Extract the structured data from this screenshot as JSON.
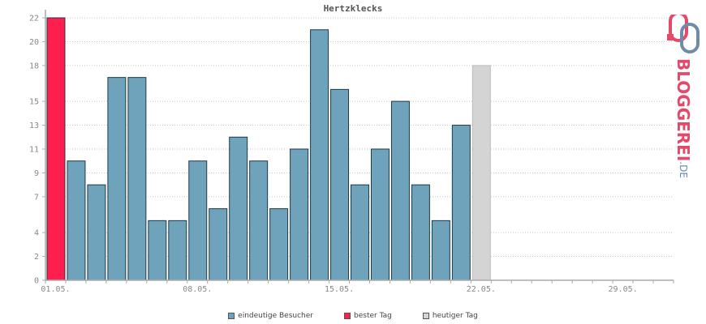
{
  "chart_data": {
    "type": "bar",
    "title": "Hertzklecks",
    "x": [
      "01.05.",
      "02.05.",
      "03.05.",
      "04.05.",
      "05.05.",
      "06.05.",
      "07.05.",
      "08.05.",
      "09.05.",
      "10.05.",
      "11.05.",
      "12.05.",
      "13.05.",
      "14.05.",
      "15.05.",
      "16.05.",
      "17.05.",
      "18.05.",
      "19.05.",
      "20.05.",
      "21.05.",
      "22.05."
    ],
    "values": [
      22,
      10,
      8,
      17,
      17,
      5,
      5,
      10,
      6,
      12,
      10,
      6,
      11,
      21,
      16,
      8,
      11,
      15,
      8,
      5,
      13,
      18
    ],
    "bar_kind": [
      "best",
      "normal",
      "normal",
      "normal",
      "normal",
      "normal",
      "normal",
      "normal",
      "normal",
      "normal",
      "normal",
      "normal",
      "normal",
      "normal",
      "normal",
      "normal",
      "normal",
      "normal",
      "normal",
      "normal",
      "normal",
      "today"
    ],
    "x_tick_labels": [
      "01.05.",
      "08.05.",
      "15.05.",
      "22.05.",
      "29.05."
    ],
    "y_tick_labels": [
      "0",
      "2",
      "4",
      "7",
      "9",
      "11",
      "13",
      "15",
      "18",
      "20",
      "22"
    ],
    "ylim": [
      0,
      22
    ],
    "grid": true,
    "legend_position": "bottom",
    "colors": {
      "normal": "#6fa3bb",
      "best": "#ff1f4e",
      "today": "#d4d4d4",
      "bar_border": "#1e3a46",
      "grid": "#c8c8c8",
      "axis": "#aaaaaa"
    },
    "legend": [
      {
        "key": "normal",
        "label": "eindeutige Besucher"
      },
      {
        "key": "best",
        "label": "bester Tag"
      },
      {
        "key": "today",
        "label": "heutiger Tag"
      }
    ]
  },
  "logo": {
    "text": "BLOGGEREI",
    "suffix": ".DE",
    "icon": "bloggerei-logo-icon"
  }
}
